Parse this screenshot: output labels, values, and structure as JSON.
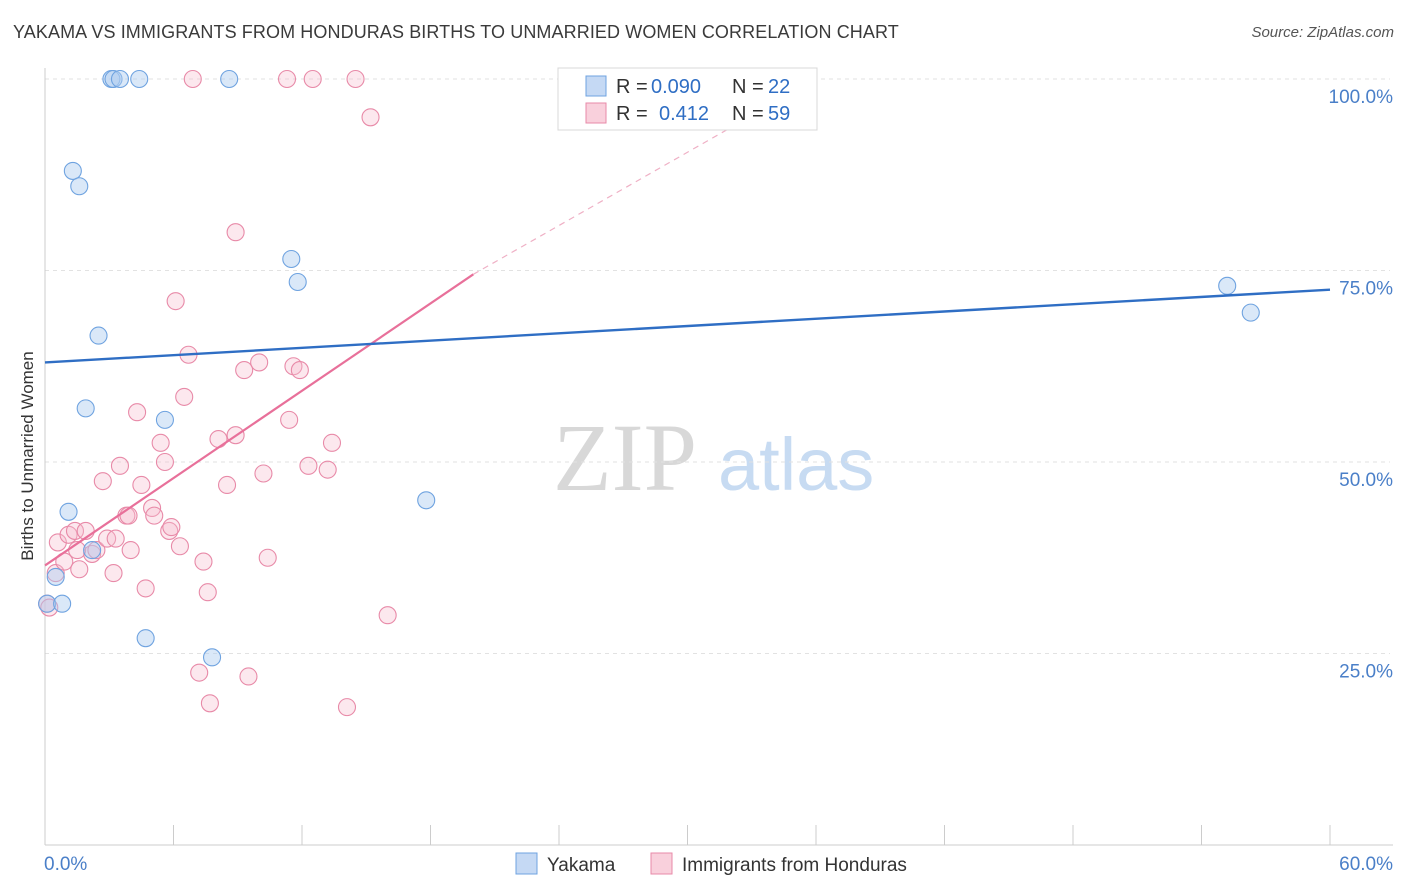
{
  "title": "YAKAMA VS IMMIGRANTS FROM HONDURAS BIRTHS TO UNMARRIED WOMEN CORRELATION CHART",
  "source": "Source: ZipAtlas.com",
  "watermark": {
    "zip": "ZIP",
    "atlas": "atlas"
  },
  "chart_data": {
    "type": "scatter",
    "xlabel": "",
    "ylabel": "Births to Unmarried Women",
    "xlim": [
      0,
      60
    ],
    "ylim": [
      0,
      100
    ],
    "x_tick_labels": {
      "min": "0.0%",
      "max": "60.0%"
    },
    "y_ticks": [
      {
        "value": 100,
        "label": "100.0%"
      },
      {
        "value": 75,
        "label": "75.0%"
      },
      {
        "value": 50,
        "label": "50.0%"
      },
      {
        "value": 25,
        "label": "25.0%"
      }
    ],
    "legend": {
      "r_label": "R =",
      "n_label": "N =",
      "entries": [
        {
          "name": "Yakama",
          "r": "0.090",
          "n": "22",
          "color": "#6fa3e0",
          "fill": "#c5d9f4"
        },
        {
          "name": "Immigrants from Honduras",
          "r": "0.412",
          "n": "59",
          "color": "#e88aa8",
          "fill": "#f9d0dc"
        }
      ]
    },
    "series": [
      {
        "name": "Yakama",
        "color": "#6fa3e0",
        "trend": {
          "x0": 0,
          "y0": 63,
          "x1": 60,
          "y1": 72.5,
          "color": "#2f6ec4"
        },
        "points": [
          [
            0.1,
            31.5
          ],
          [
            0.5,
            35.0
          ],
          [
            0.8,
            31.5
          ],
          [
            1.1,
            43.5
          ],
          [
            1.3,
            88.0
          ],
          [
            1.6,
            86.0
          ],
          [
            1.9,
            57.0
          ],
          [
            2.2,
            38.5
          ],
          [
            2.5,
            66.5
          ],
          [
            3.1,
            100
          ],
          [
            3.2,
            100
          ],
          [
            3.5,
            100
          ],
          [
            4.4,
            100
          ],
          [
            4.7,
            27.0
          ],
          [
            5.6,
            55.5
          ],
          [
            7.8,
            24.5
          ],
          [
            8.6,
            100
          ],
          [
            11.5,
            76.5
          ],
          [
            11.8,
            73.5
          ],
          [
            17.8,
            45.0
          ],
          [
            55.2,
            73.0
          ],
          [
            56.3,
            69.5
          ]
        ]
      },
      {
        "name": "Immigrants from Honduras",
        "color": "#e88aa8",
        "trend": {
          "x0": 0,
          "y0": 36.5,
          "x1": 20,
          "y1": 74.5,
          "color": "#e8709a",
          "dash_x1": 36,
          "dash_y1": 100
        },
        "points": [
          [
            0.1,
            31.5
          ],
          [
            0.5,
            35.5
          ],
          [
            0.6,
            39.5
          ],
          [
            0.9,
            37.0
          ],
          [
            1.1,
            40.5
          ],
          [
            1.4,
            41.0
          ],
          [
            1.6,
            36.0
          ],
          [
            1.9,
            41.0
          ],
          [
            2.2,
            38.0
          ],
          [
            2.4,
            38.5
          ],
          [
            2.7,
            47.5
          ],
          [
            2.9,
            40.0
          ],
          [
            3.2,
            35.5
          ],
          [
            3.3,
            40.0
          ],
          [
            3.5,
            49.5
          ],
          [
            3.8,
            43.0
          ],
          [
            3.9,
            43.0
          ],
          [
            4.0,
            38.5
          ],
          [
            4.3,
            56.5
          ],
          [
            4.5,
            47.0
          ],
          [
            4.7,
            33.5
          ],
          [
            5.0,
            44.0
          ],
          [
            5.1,
            43.0
          ],
          [
            5.4,
            52.5
          ],
          [
            5.6,
            50.0
          ],
          [
            5.8,
            41.0
          ],
          [
            5.9,
            41.5
          ],
          [
            6.1,
            71.0
          ],
          [
            6.3,
            39.0
          ],
          [
            6.5,
            58.5
          ],
          [
            6.7,
            64.0
          ],
          [
            6.9,
            100
          ],
          [
            7.2,
            22.5
          ],
          [
            7.4,
            37.0
          ],
          [
            7.6,
            33.0
          ],
          [
            7.7,
            18.5
          ],
          [
            8.1,
            53.0
          ],
          [
            8.5,
            47.0
          ],
          [
            8.9,
            80.0
          ],
          [
            8.9,
            53.5
          ],
          [
            9.3,
            62.0
          ],
          [
            9.5,
            22.0
          ],
          [
            10.0,
            63.0
          ],
          [
            10.2,
            48.5
          ],
          [
            10.4,
            37.5
          ],
          [
            11.3,
            100
          ],
          [
            11.4,
            55.5
          ],
          [
            11.6,
            62.5
          ],
          [
            11.9,
            62.0
          ],
          [
            12.3,
            49.5
          ],
          [
            12.5,
            100
          ],
          [
            13.2,
            49.0
          ],
          [
            13.4,
            52.5
          ],
          [
            14.1,
            18.0
          ],
          [
            14.5,
            100
          ],
          [
            15.2,
            95.0
          ],
          [
            16.0,
            30.0
          ],
          [
            0.2,
            31.0
          ],
          [
            1.5,
            38.5
          ]
        ]
      }
    ]
  },
  "bottom_legend": [
    {
      "name": "Yakama"
    },
    {
      "name": "Immigrants from Honduras"
    }
  ]
}
